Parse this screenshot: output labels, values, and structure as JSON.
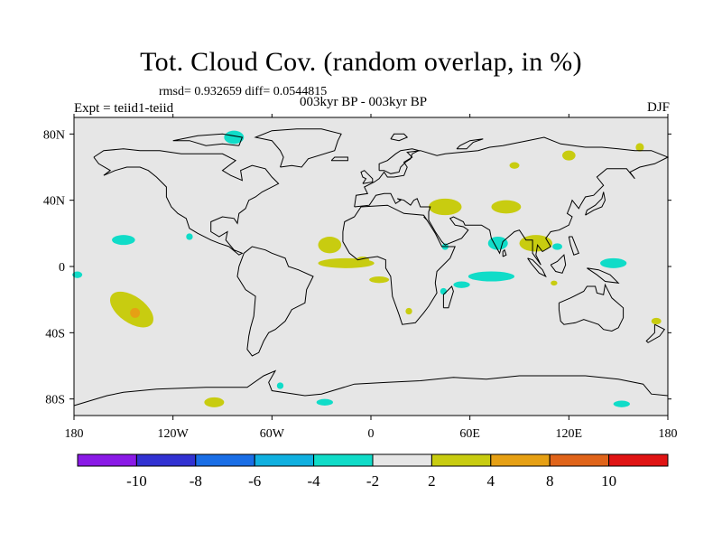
{
  "title": "Tot. Cloud Cov. (random overlap, in %)",
  "stats_line": "rmsd= 0.932659 diff= 0.0544815",
  "experiment": "Expt = teiid1-teiid",
  "period": "003kyr BP - 003kyr BP",
  "season": "DJF",
  "axes": {
    "x_ticks": [
      {
        "lon": -180,
        "label": "180"
      },
      {
        "lon": -120,
        "label": "120W"
      },
      {
        "lon": -60,
        "label": "60W"
      },
      {
        "lon": 0,
        "label": "0"
      },
      {
        "lon": 60,
        "label": "60E"
      },
      {
        "lon": 120,
        "label": "120E"
      },
      {
        "lon": 180,
        "label": "180"
      }
    ],
    "y_ticks": [
      {
        "lat": 80,
        "label": "80N"
      },
      {
        "lat": 40,
        "label": "40N"
      },
      {
        "lat": 0,
        "label": "0"
      },
      {
        "lat": -40,
        "label": "40S"
      },
      {
        "lat": -80,
        "label": "80S"
      }
    ],
    "lon_range": [
      -180,
      180
    ],
    "lat_range": [
      -90,
      90
    ]
  },
  "colorbar": {
    "colors": [
      "#8a1ae6",
      "#3232d2",
      "#1a6ee6",
      "#10b0e0",
      "#10dcc8",
      "#e6e6e6",
      "#c8cc10",
      "#e6a014",
      "#e0641a",
      "#e01414"
    ],
    "labels": [
      "-10",
      "-8",
      "-6",
      "-4",
      "-2",
      "2",
      "4",
      "8",
      "10"
    ]
  },
  "chart_data": {
    "type": "heatmap",
    "title": "Tot. Cloud Cov. (random overlap, in %)",
    "xlim": [
      -180,
      180
    ],
    "ylim": [
      -90,
      90
    ],
    "levels": [
      -10,
      -8,
      -6,
      -4,
      -2,
      2,
      4,
      8,
      10
    ],
    "anomalies": [
      {
        "lon": 163,
        "lat": 72,
        "rx": 2.5,
        "ry": 2.5,
        "level": "2 to 4"
      },
      {
        "lon": 120,
        "lat": 67,
        "rx": 4,
        "ry": 3,
        "level": "2 to 4"
      },
      {
        "lon": -83,
        "lat": 78,
        "rx": 6,
        "ry": 4,
        "level": "-4 to -2"
      },
      {
        "lon": -150,
        "lat": 16,
        "rx": 7,
        "ry": 3,
        "level": "-4 to -2"
      },
      {
        "lon": -110,
        "lat": 18,
        "rx": 2,
        "ry": 2,
        "level": "-4 to -2"
      },
      {
        "lon": -178,
        "lat": -5,
        "rx": 3,
        "ry": 2,
        "level": "-4 to -2"
      },
      {
        "lon": -145,
        "lat": -26,
        "rx": 15,
        "ry": 8,
        "level": "2 to 4",
        "rotation": 35
      },
      {
        "lon": -143,
        "lat": -28,
        "rx": 3,
        "ry": 3,
        "level": "4 to 8"
      },
      {
        "lon": -25,
        "lat": 13,
        "rx": 7,
        "ry": 5,
        "level": "2 to 4"
      },
      {
        "lon": -15,
        "lat": 2,
        "rx": 17,
        "ry": 3,
        "level": "2 to 4"
      },
      {
        "lon": -5,
        "lat": 4,
        "rx": 4,
        "ry": 2,
        "level": "2 to 4"
      },
      {
        "lon": 5,
        "lat": -8,
        "rx": 6,
        "ry": 2,
        "level": "2 to 4"
      },
      {
        "lon": 23,
        "lat": -27,
        "rx": 2,
        "ry": 2,
        "level": "2 to 4"
      },
      {
        "lon": 45,
        "lat": 36,
        "rx": 10,
        "ry": 5,
        "level": "2 to 4"
      },
      {
        "lon": 82,
        "lat": 36,
        "rx": 9,
        "ry": 4,
        "level": "2 to 4"
      },
      {
        "lon": 87,
        "lat": 61,
        "rx": 3,
        "ry": 2,
        "level": "2 to 4"
      },
      {
        "lon": 100,
        "lat": 14,
        "rx": 10,
        "ry": 5,
        "level": "2 to 4"
      },
      {
        "lon": 77,
        "lat": 14,
        "rx": 6,
        "ry": 4,
        "level": "-4 to -2"
      },
      {
        "lon": 45,
        "lat": 12,
        "rx": 2,
        "ry": 2,
        "level": "-4 to -2"
      },
      {
        "lon": 73,
        "lat": -6,
        "rx": 14,
        "ry": 3,
        "level": "-4 to -2"
      },
      {
        "lon": 55,
        "lat": -11,
        "rx": 5,
        "ry": 2,
        "level": "-4 to -2"
      },
      {
        "lon": 44,
        "lat": -15,
        "rx": 2,
        "ry": 2,
        "level": "-4 to -2"
      },
      {
        "lon": 147,
        "lat": 2,
        "rx": 8,
        "ry": 3,
        "level": "-4 to -2"
      },
      {
        "lon": 113,
        "lat": 12,
        "rx": 3,
        "ry": 2,
        "level": "-4 to -2"
      },
      {
        "lon": 111,
        "lat": -10,
        "rx": 2,
        "ry": 1.5,
        "level": "2 to 4"
      },
      {
        "lon": 173,
        "lat": -33,
        "rx": 3,
        "ry": 2,
        "level": "2 to 4"
      },
      {
        "lon": -95,
        "lat": -82,
        "rx": 6,
        "ry": 3,
        "level": "2 to 4"
      },
      {
        "lon": -55,
        "lat": -72,
        "rx": 2,
        "ry": 2,
        "level": "-4 to -2"
      },
      {
        "lon": -28,
        "lat": -82,
        "rx": 5,
        "ry": 2,
        "level": "-4 to -2"
      },
      {
        "lon": 152,
        "lat": -83,
        "rx": 5,
        "ry": 2,
        "level": "-4 to -2"
      }
    ]
  }
}
